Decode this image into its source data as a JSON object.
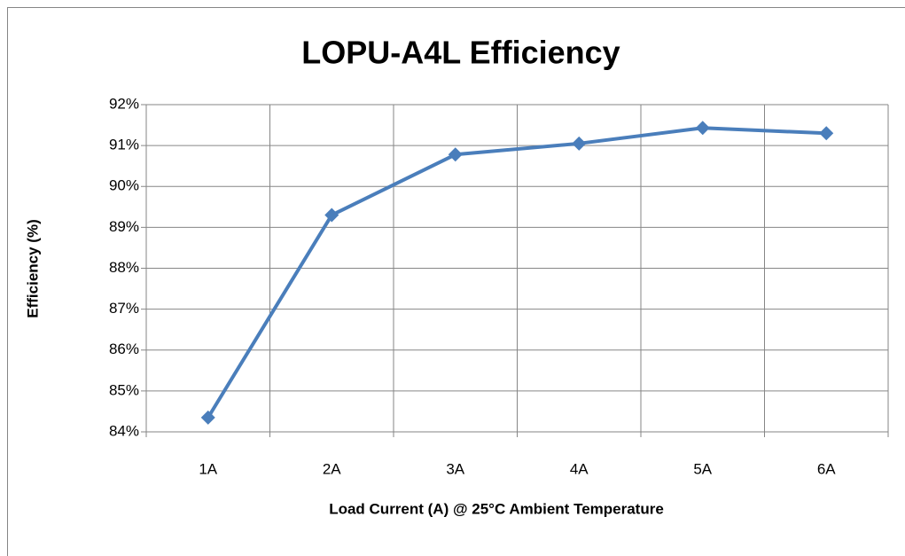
{
  "chart_data": {
    "type": "line",
    "title": "LOPU-A4L Efficiency",
    "x_label": "Load Current (A) @ 25°C Ambient Temperature",
    "y_label": "Efficiency (%)",
    "categories": [
      "1A",
      "2A",
      "3A",
      "4A",
      "5A",
      "6A"
    ],
    "series": [
      {
        "name": "Efficiency",
        "color": "#4a7ebb",
        "values": [
          84.35,
          89.3,
          90.78,
          91.05,
          91.43,
          91.3
        ]
      }
    ],
    "ylim": [
      84,
      92
    ],
    "yticks": [
      {
        "value": 84,
        "label": "84%"
      },
      {
        "value": 85,
        "label": "85%"
      },
      {
        "value": 86,
        "label": "86%"
      },
      {
        "value": 87,
        "label": "87%"
      },
      {
        "value": 88,
        "label": "88%"
      },
      {
        "value": 89,
        "label": "89%"
      },
      {
        "value": 90,
        "label": "90%"
      },
      {
        "value": 91,
        "label": "91%"
      },
      {
        "value": 92,
        "label": "92%"
      }
    ],
    "grid": true
  }
}
